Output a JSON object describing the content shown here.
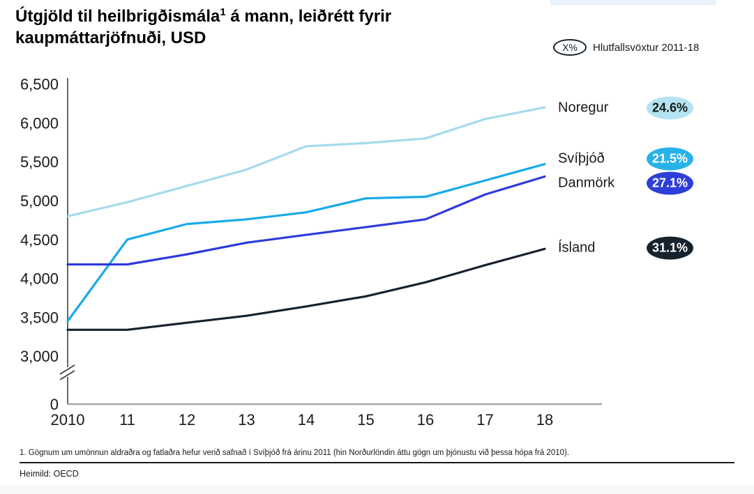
{
  "title": {
    "pre": "Útgjöld til heilbrigðismála",
    "sup": "1",
    "post": " á mann, leiðrétt fyrir kaupmáttarjöfnuði, USD"
  },
  "growth_legend": {
    "symbol": "X%",
    "label": "Hlutfallsvöxtur 2011-18"
  },
  "footnote": "1. Gögnum um umönnun aldraðra og fatlaðra hefur verið safnað í Svíþjóð frá árinu 2011 (hin Norðurlöndin áttu gögn um þjónustu við þessa hópa frá 2010).",
  "source": "Heimild: OECD",
  "chart_data": {
    "type": "line",
    "title": "Útgjöld til heilbrigðismála á mann, leiðrétt fyrir kaupmáttarjöfnuði, USD",
    "xlabel": "",
    "ylabel": "",
    "x": [
      2010,
      2011,
      2012,
      2013,
      2014,
      2015,
      2016,
      2017,
      2018
    ],
    "x_tick_labels": [
      "2010",
      "11",
      "12",
      "13",
      "14",
      "15",
      "16",
      "17",
      "18"
    ],
    "y_ticks": [
      {
        "label": "6,500",
        "value": 6500
      },
      {
        "label": "6,000",
        "value": 6000
      },
      {
        "label": "5,500",
        "value": 5500
      },
      {
        "label": "5,000",
        "value": 5000
      },
      {
        "label": "4,500",
        "value": 4500
      },
      {
        "label": "4,000",
        "value": 4000
      },
      {
        "label": "3,500",
        "value": 3500
      },
      {
        "label": "3,000",
        "value": 3000
      },
      {
        "label": "0",
        "value": 0
      }
    ],
    "y_axis_break": true,
    "ylim_display": [
      3000,
      6500
    ],
    "grid": false,
    "legend_position": "right",
    "series": [
      {
        "name": "Noregur",
        "growth_2011_18": "24.6%",
        "color": "#a5dbed",
        "badge_color": "#b4e3f1",
        "badge_text_color": "#1a1a1a",
        "values": [
          4800,
          4980,
          5190,
          5400,
          5700,
          5740,
          5800,
          6050,
          6200
        ]
      },
      {
        "name": "Svíþjóð",
        "growth_2011_18": "21.5%",
        "color": "#17aae9",
        "badge_color": "#29b2ea",
        "badge_text_color": "#ffffff",
        "values": [
          3450,
          4500,
          4700,
          4760,
          4850,
          5030,
          5050,
          5260,
          5470
        ]
      },
      {
        "name": "Danmörk",
        "growth_2011_18": "27.1%",
        "color": "#2d3adc",
        "badge_color": "#2e3ed8",
        "badge_text_color": "#ffffff",
        "values": [
          4180,
          4180,
          4310,
          4460,
          4560,
          4660,
          4760,
          5080,
          5310
        ]
      },
      {
        "name": "Ísland",
        "growth_2011_18": "31.1%",
        "color": "#16222e",
        "badge_color": "#16222e",
        "badge_text_color": "#ffffff",
        "values": [
          3340,
          3340,
          3430,
          3520,
          3640,
          3770,
          3950,
          4170,
          4380
        ]
      }
    ]
  }
}
